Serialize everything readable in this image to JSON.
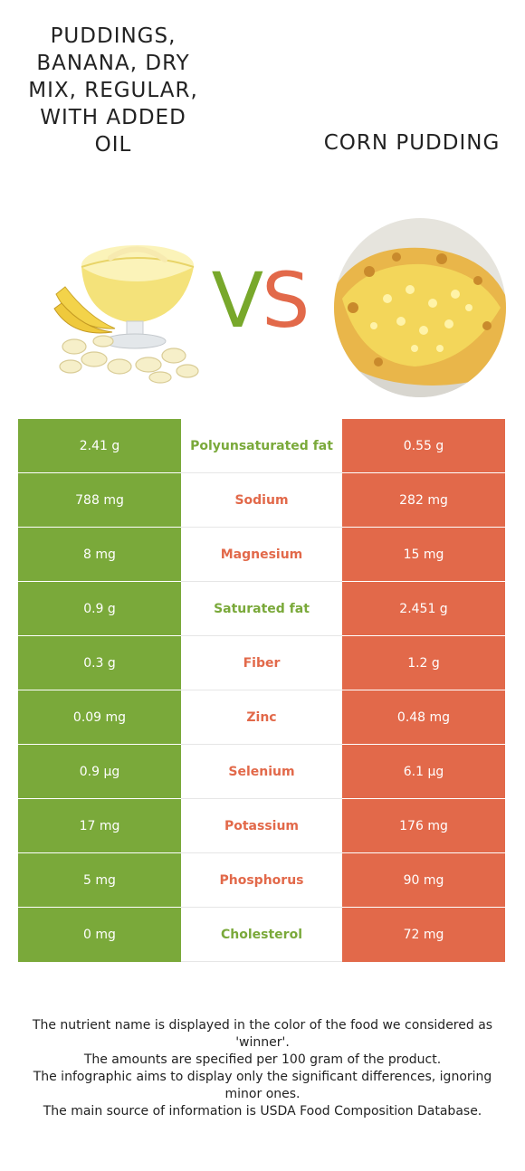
{
  "foods": {
    "left_title": "Puddings, banana, dry mix, regular, with added oil",
    "right_title": "Corn pudding"
  },
  "vs": {
    "v": "V",
    "s": "S"
  },
  "colors": {
    "left": "#7aa93a",
    "right": "#e2694a"
  },
  "rows": [
    {
      "left": "2.41 g",
      "nutrient": "Polyunsaturated fat",
      "right": "0.55 g",
      "winner": "left"
    },
    {
      "left": "788 mg",
      "nutrient": "Sodium",
      "right": "282 mg",
      "winner": "right"
    },
    {
      "left": "8 mg",
      "nutrient": "Magnesium",
      "right": "15 mg",
      "winner": "right"
    },
    {
      "left": "0.9 g",
      "nutrient": "Saturated fat",
      "right": "2.451 g",
      "winner": "left"
    },
    {
      "left": "0.3 g",
      "nutrient": "Fiber",
      "right": "1.2 g",
      "winner": "right"
    },
    {
      "left": "0.09 mg",
      "nutrient": "Zinc",
      "right": "0.48 mg",
      "winner": "right"
    },
    {
      "left": "0.9 µg",
      "nutrient": "Selenium",
      "right": "6.1 µg",
      "winner": "right"
    },
    {
      "left": "17 mg",
      "nutrient": "Potassium",
      "right": "176 mg",
      "winner": "right"
    },
    {
      "left": "5 mg",
      "nutrient": "Phosphorus",
      "right": "90 mg",
      "winner": "right"
    },
    {
      "left": "0 mg",
      "nutrient": "Cholesterol",
      "right": "72 mg",
      "winner": "left"
    }
  ],
  "footer": {
    "line1": "The nutrient name is displayed in the color of the food we considered as 'winner'.",
    "line2": "The amounts are specified per 100 gram of the product.",
    "line3": "The infographic aims to display only the significant differences, ignoring minor ones.",
    "line4": "The main source of information is USDA Food Composition Database."
  }
}
